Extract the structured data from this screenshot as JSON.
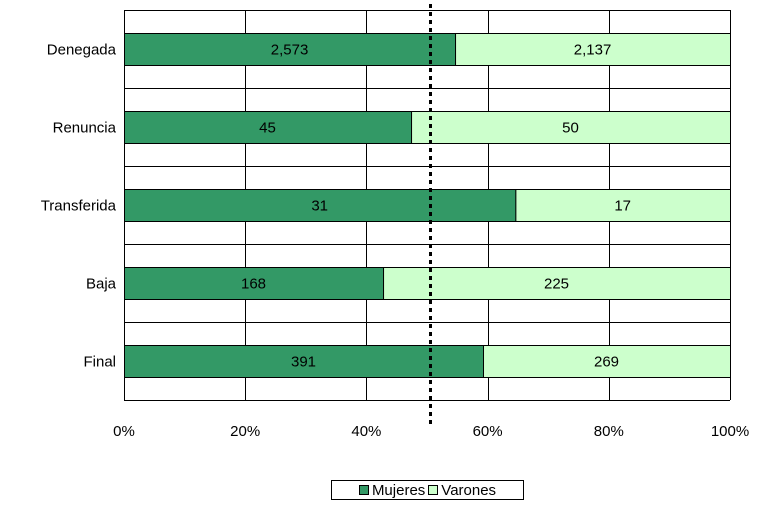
{
  "chart_data": {
    "type": "bar",
    "orientation": "horizontal",
    "stacked": "percent",
    "categories": [
      "Denegada",
      "Renuncia",
      "Transferida",
      "Baja",
      "Final"
    ],
    "series": [
      {
        "name": "Mujeres",
        "color": "#339966",
        "values": [
          2573,
          45,
          31,
          168,
          391
        ],
        "labels": [
          "2,573",
          "45",
          "31",
          "168",
          "391"
        ]
      },
      {
        "name": "Varones",
        "color": "#ccffcc",
        "values": [
          2137,
          50,
          17,
          225,
          269
        ],
        "labels": [
          "2,137",
          "50",
          "17",
          "225",
          "269"
        ]
      }
    ],
    "xlim": [
      0,
      100
    ],
    "x_ticks": [
      "0%",
      "20%",
      "40%",
      "60%",
      "80%",
      "100%"
    ],
    "reference_line": {
      "x": 50,
      "style": "dotted"
    },
    "grid": true,
    "legend": "bottom-center"
  }
}
